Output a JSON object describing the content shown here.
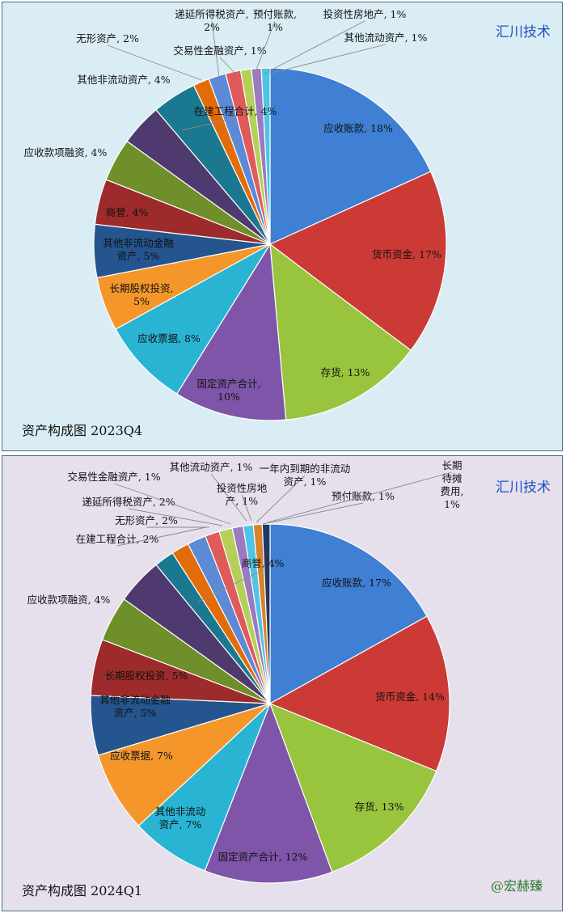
{
  "chart_data": [
    {
      "type": "pie",
      "title": "资产构成图 2023Q4",
      "company": "汇川技术",
      "slices": [
        {
          "label": "应收账款",
          "pct_label": "18%",
          "value": 18.4,
          "color": "#3f7fd4"
        },
        {
          "label": "货币资金",
          "pct_label": "17%",
          "value": 17.2,
          "color": "#cc3a36"
        },
        {
          "label": "存货",
          "pct_label": "13%",
          "value": 13.4,
          "color": "#98c43e"
        },
        {
          "label": "固定资产合计",
          "pct_label": "10%",
          "value": 10.4,
          "color": "#7e55a8"
        },
        {
          "label": "应收票据",
          "pct_label": "8%",
          "value": 8.2,
          "color": "#2ab4d4"
        },
        {
          "label": "长期股权投资",
          "pct_label": "5%",
          "value": 5.0,
          "color": "#f5962a"
        },
        {
          "label": "其他非流动金融资产",
          "pct_label": "5%",
          "value": 4.9,
          "color": "#24558f"
        },
        {
          "label": "商誉",
          "pct_label": "4%",
          "value": 4.2,
          "color": "#9d2b2b"
        },
        {
          "label": "应收款项融资",
          "pct_label": "4%",
          "value": 4.0,
          "color": "#6f8f2a"
        },
        {
          "label": "其他非流动资产",
          "pct_label": "4%",
          "value": 3.9,
          "color": "#4e3a6e"
        },
        {
          "label": "在建工程合计",
          "pct_label": "4%",
          "value": 4.1,
          "color": "#1a7890"
        },
        {
          "label": "无形资产",
          "pct_label": "2%",
          "value": 1.5,
          "color": "#e36c0a"
        },
        {
          "label": "递延所得税资产",
          "pct_label": "2%",
          "value": 1.6,
          "color": "#5d8ad6"
        },
        {
          "label": "交易性金融资产",
          "pct_label": "1%",
          "value": 1.4,
          "color": "#e05a5a"
        },
        {
          "label": "预付账款",
          "pct_label": "1%",
          "value": 1.0,
          "color": "#b4d05a"
        },
        {
          "label": "投资性房地产",
          "pct_label": "1%",
          "value": 0.9,
          "color": "#9a7ac0"
        },
        {
          "label": "其他流动资产",
          "pct_label": "1%",
          "value": 0.8,
          "color": "#4fc4e4"
        }
      ],
      "labels_text": [
        {
          "lines": [
            "应收账款, 18%"
          ]
        },
        {
          "lines": [
            "货币资金, 17%"
          ]
        },
        {
          "lines": [
            "存货, 13%"
          ]
        },
        {
          "lines": [
            "固定资产合计,",
            "10%"
          ]
        },
        {
          "lines": [
            "应收票据, 8%"
          ]
        },
        {
          "lines": [
            "长期股权投资,",
            "5%"
          ]
        },
        {
          "lines": [
            "其他非流动金融",
            "资产, 5%"
          ]
        },
        {
          "lines": [
            "商誉, 4%"
          ]
        },
        {
          "lines": [
            "应收款项融资, 4%"
          ]
        },
        {
          "lines": [
            "其他非流动资产, 4%"
          ]
        },
        {
          "lines": [
            "在建工程合计, 4%"
          ]
        },
        {
          "lines": [
            "无形资产, 2%"
          ]
        },
        {
          "lines": [
            "递延所得税资产,",
            "2%"
          ]
        },
        {
          "lines": [
            "交易性金融资产, 1%"
          ]
        },
        {
          "lines": [
            "预付账款,",
            "1%"
          ]
        },
        {
          "lines": [
            "投资性房地产, 1%"
          ]
        },
        {
          "lines": [
            "其他流动资产, 1%"
          ]
        }
      ]
    },
    {
      "type": "pie",
      "title": "资产构成图 2024Q1",
      "company": "汇川技术",
      "watermark": "@宏赫臻",
      "slices": [
        {
          "label": "应收账款",
          "pct_label": "17%",
          "value": 17.0,
          "color": "#3f7fd4"
        },
        {
          "label": "货币资金",
          "pct_label": "14%",
          "value": 14.3,
          "color": "#cc3a36"
        },
        {
          "label": "存货",
          "pct_label": "13%",
          "value": 13.3,
          "color": "#98c43e"
        },
        {
          "label": "固定资产合计",
          "pct_label": "12%",
          "value": 11.6,
          "color": "#7e55a8"
        },
        {
          "label": "其他非流动资产",
          "pct_label": "7%",
          "value": 7.2,
          "color": "#2ab4d4"
        },
        {
          "label": "应收票据",
          "pct_label": "7%",
          "value": 7.3,
          "color": "#f5962a"
        },
        {
          "label": "其他非流动金融资产",
          "pct_label": "5%",
          "value": 5.4,
          "color": "#24558f"
        },
        {
          "label": "长期股权投资",
          "pct_label": "5%",
          "value": 5.1,
          "color": "#9d2b2b"
        },
        {
          "label": "应收款项融资",
          "pct_label": "4%",
          "value": 4.1,
          "color": "#6f8f2a"
        },
        {
          "label": "商誉",
          "pct_label": "4%",
          "value": 4.2,
          "color": "#4e3a6e"
        },
        {
          "label": "在建工程合计",
          "pct_label": "2%",
          "value": 1.8,
          "color": "#1a7890"
        },
        {
          "label": "无形资产",
          "pct_label": "2%",
          "value": 1.6,
          "color": "#e36c0a"
        },
        {
          "label": "递延所得税资产",
          "pct_label": "2%",
          "value": 1.7,
          "color": "#5d8ad6"
        },
        {
          "label": "交易性金融资产",
          "pct_label": "1%",
          "value": 1.3,
          "color": "#e05a5a"
        },
        {
          "label": "其他流动资产",
          "pct_label": "1%",
          "value": 1.2,
          "color": "#b4d05a"
        },
        {
          "label": "投资性房地产",
          "pct_label": "1%",
          "value": 1.0,
          "color": "#9a7ac0"
        },
        {
          "label": "一年内到期的非流动资产",
          "pct_label": "1%",
          "value": 0.9,
          "color": "#4fc4e4"
        },
        {
          "label": "预付账款",
          "pct_label": "1%",
          "value": 0.8,
          "color": "#d9822b"
        },
        {
          "label": "长期待摊费用",
          "pct_label": "1%",
          "value": 0.7,
          "color": "#1f3864"
        }
      ],
      "labels_text": [
        {
          "lines": [
            "应收账款, 17%"
          ]
        },
        {
          "lines": [
            "货币资金, 14%"
          ]
        },
        {
          "lines": [
            "存货, 13%"
          ]
        },
        {
          "lines": [
            "固定资产合计, 12%"
          ]
        },
        {
          "lines": [
            "其他非流动",
            "资产, 7%"
          ]
        },
        {
          "lines": [
            "应收票据, 7%"
          ]
        },
        {
          "lines": [
            "其他非流动金融",
            "资产, 5%"
          ]
        },
        {
          "lines": [
            "长期股权投资, 5%"
          ]
        },
        {
          "lines": [
            "应收款项融资, 4%"
          ]
        },
        {
          "lines": [
            "商誉, 4%"
          ]
        },
        {
          "lines": [
            "在建工程合计, 2%"
          ]
        },
        {
          "lines": [
            "无形资产, 2%"
          ]
        },
        {
          "lines": [
            "递延所得税资产, 2%"
          ]
        },
        {
          "lines": [
            "交易性金融资产, 1%"
          ]
        },
        {
          "lines": [
            "其他流动资产, 1%"
          ]
        },
        {
          "lines": [
            "投资性房地",
            "产, 1%"
          ]
        },
        {
          "lines": [
            "一年内到期的非流动",
            "资产, 1%"
          ]
        },
        {
          "lines": [
            "预付账款, 1%"
          ]
        },
        {
          "lines": [
            "长期",
            "待摊",
            "费用,",
            "1%"
          ]
        }
      ]
    }
  ]
}
